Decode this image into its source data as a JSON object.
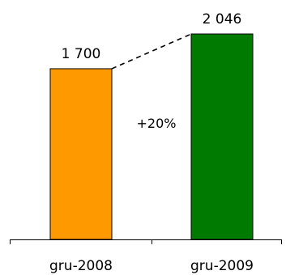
{
  "chart_data": {
    "type": "bar",
    "categories": [
      "gru-2008",
      "gru-2009"
    ],
    "values": [
      1700,
      2046
    ],
    "value_labels": [
      "1 700",
      "2 046"
    ],
    "change_label": "+20%",
    "ylim": [
      0,
      2046
    ],
    "grid": false,
    "legend": "none",
    "bar_colors": [
      "#FF9900",
      "#007A00"
    ],
    "bar_border_color": "#000000",
    "axis_color": "#000000",
    "connector_style": "dashed"
  }
}
